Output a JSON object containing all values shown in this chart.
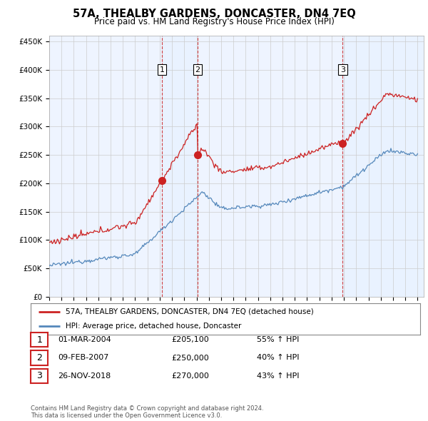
{
  "title": "57A, THEALBY GARDENS, DONCASTER, DN4 7EQ",
  "subtitle": "Price paid vs. HM Land Registry's House Price Index (HPI)",
  "yticks": [
    0,
    50000,
    100000,
    150000,
    200000,
    250000,
    300000,
    350000,
    400000,
    450000
  ],
  "ytick_labels": [
    "£0",
    "£50K",
    "£100K",
    "£150K",
    "£200K",
    "£250K",
    "£300K",
    "£350K",
    "£400K",
    "£450K"
  ],
  "sale_prices": [
    205100,
    250000,
    270000
  ],
  "sale_labels": [
    "1",
    "2",
    "3"
  ],
  "sale_pct_hpi": [
    "55% ↑ HPI",
    "40% ↑ HPI",
    "43% ↑ HPI"
  ],
  "sale_date_strs": [
    "01-MAR-2004",
    "09-FEB-2007",
    "26-NOV-2018"
  ],
  "sale_price_strs": [
    "£205,100",
    "£250,000",
    "£270,000"
  ],
  "sale_year_floats": [
    2004.17,
    2007.09,
    2018.9
  ],
  "hpi_color": "#5588bb",
  "price_color": "#cc2222",
  "vline_color": "#cc2222",
  "grid_color": "#cccccc",
  "bg_color": "#ffffff",
  "plot_bg_color": "#eef4ff",
  "shade_color": "#ddeeff",
  "legend_line1": "57A, THEALBY GARDENS, DONCASTER, DN4 7EQ (detached house)",
  "legend_line2": "HPI: Average price, detached house, Doncaster",
  "footer": "Contains HM Land Registry data © Crown copyright and database right 2024.\nThis data is licensed under the Open Government Licence v3.0."
}
